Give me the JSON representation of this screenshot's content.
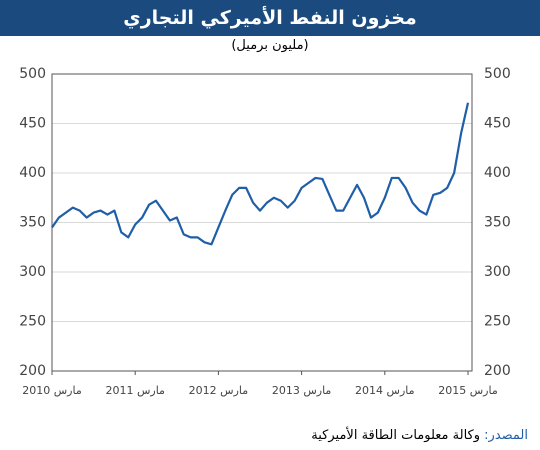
{
  "chart_data": {
    "type": "line",
    "title": "مخزون النفط الأميركي التجاري",
    "subtitle": "(مليون برميل)",
    "source_label": "المصدر:",
    "source_text": "وكالة معلومات الطاقة الأميركية",
    "x": [
      "2010-03",
      "2010-04",
      "2010-05",
      "2010-06",
      "2010-07",
      "2010-08",
      "2010-09",
      "2010-10",
      "2010-11",
      "2010-12",
      "2011-01",
      "2011-02",
      "2011-03",
      "2011-04",
      "2011-05",
      "2011-06",
      "2011-07",
      "2011-08",
      "2011-09",
      "2011-10",
      "2011-11",
      "2011-12",
      "2012-01",
      "2012-02",
      "2012-03",
      "2012-04",
      "2012-05",
      "2012-06",
      "2012-07",
      "2012-08",
      "2012-09",
      "2012-10",
      "2012-11",
      "2012-12",
      "2013-01",
      "2013-02",
      "2013-03",
      "2013-04",
      "2013-05",
      "2013-06",
      "2013-07",
      "2013-08",
      "2013-09",
      "2013-10",
      "2013-11",
      "2013-12",
      "2014-01",
      "2014-02",
      "2014-03",
      "2014-04",
      "2014-05",
      "2014-06",
      "2014-07",
      "2014-08",
      "2014-09",
      "2014-10",
      "2014-11",
      "2014-12",
      "2015-01",
      "2015-02",
      "2015-03"
    ],
    "series": [
      {
        "color": "#1f5fa8",
        "values": [
          345,
          355,
          360,
          365,
          362,
          355,
          360,
          362,
          358,
          362,
          340,
          335,
          348,
          355,
          368,
          372,
          362,
          352,
          355,
          338,
          335,
          335,
          330,
          328,
          345,
          362,
          378,
          385,
          385,
          370,
          362,
          370,
          375,
          372,
          365,
          372,
          385,
          390,
          395,
          394,
          378,
          362,
          362,
          375,
          388,
          375,
          355,
          360,
          375,
          395,
          395,
          385,
          370,
          362,
          358,
          378,
          380,
          385,
          400,
          440,
          471
        ]
      }
    ],
    "xlim": [
      "2010-03",
      "2015-03"
    ],
    "xticks": [
      {
        "value": "2010-03",
        "label": "مارس 2010"
      },
      {
        "value": "2011-03",
        "label": "مارس 2011"
      },
      {
        "value": "2012-03",
        "label": "مارس 2012"
      },
      {
        "value": "2013-03",
        "label": "مارس 2013"
      },
      {
        "value": "2014-03",
        "label": "مارس 2014"
      },
      {
        "value": "2015-03",
        "label": "مارس 2015"
      }
    ],
    "ylim": [
      200,
      500
    ],
    "yticks": [
      200,
      250,
      300,
      350,
      400,
      450,
      500
    ],
    "grid": true
  }
}
